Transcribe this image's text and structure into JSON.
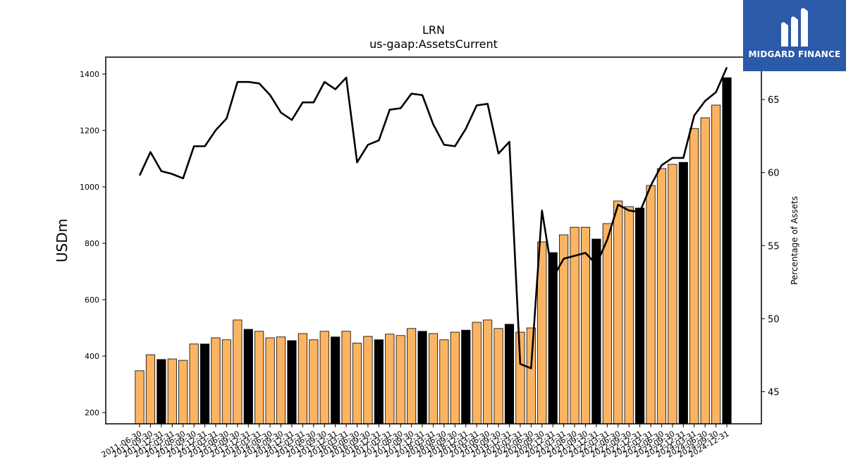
{
  "brand": {
    "name": "MIDGARD FINANCE",
    "bg_color": "#2b5aa8"
  },
  "chart_data": {
    "type": "bar+line",
    "title": "LRN",
    "subtitle": "us-gaap:AssetsCurrent",
    "ylabel": "USDm",
    "y2label": "Percentage of Assets",
    "ylim": [
      160,
      1460
    ],
    "y2lim": [
      42.8,
      67.9
    ],
    "yticks": [
      200,
      400,
      600,
      800,
      1000,
      1200,
      1400
    ],
    "y2ticks": [
      45,
      50,
      55,
      60,
      65
    ],
    "colors": {
      "quarter": "#fdb462",
      "fiscal_year_end": "#000000",
      "line": "#000000"
    },
    "categories": [
      "2011-06-30",
      "2011-09-30",
      "2011-12-31",
      "2012-03-31",
      "2012-06-30",
      "2012-09-30",
      "2012-12-31",
      "2013-03-31",
      "2013-06-30",
      "2013-09-30",
      "2013-12-31",
      "2014-03-31",
      "2014-06-30",
      "2014-09-30",
      "2014-12-31",
      "2015-03-31",
      "2015-06-30",
      "2015-09-30",
      "2015-12-31",
      "2016-03-31",
      "2016-06-30",
      "2016-09-30",
      "2016-12-31",
      "2017-03-31",
      "2017-06-30",
      "2017-09-30",
      "2017-12-31",
      "2018-03-31",
      "2018-06-30",
      "2018-09-30",
      "2018-12-31",
      "2019-03-31",
      "2019-06-30",
      "2019-09-30",
      "2019-12-31",
      "2020-03-31",
      "2020-06-30",
      "2020-09-30",
      "2020-12-31",
      "2021-03-31",
      "2021-06-30",
      "2021-09-30",
      "2021-12-31",
      "2022-03-31",
      "2022-06-30",
      "2022-09-30",
      "2022-12-31",
      "2023-03-31",
      "2023-06-30",
      "2023-09-30",
      "2023-12-31",
      "2024-03-31",
      "2024-06-30",
      "2024-09-30",
      "2024-12-31"
    ],
    "tick_labels": [
      "2011-06-30",
      "2011-09-30",
      "2011-12-31",
      "2012-03-31",
      "2012-06-30",
      "2012-09-30",
      "2012-12-31",
      "2013-03-31",
      "2013-06-30",
      "2013-09-30",
      "2013-12-31",
      "2014-03-31",
      "2014-06-30",
      "2014-09-30",
      "2014-12-31",
      "2015-03-31",
      "2015-06-30",
      "2015-09-30",
      "2015-12-31",
      "2016-03-31",
      "2016-06-30",
      "2016-09-30",
      "2016-12-31",
      "2017-03-31",
      "2017-06-30",
      "2017-09-30",
      "2017-12-31",
      "2018-03-31",
      "2018-06-30",
      "2018-09-30",
      "2018-12-31",
      "2019-03-31",
      "2019-06-30",
      "2019-09-30",
      "2019-12-31",
      "2020-03-31",
      "2020-06-30",
      "2020-09-30",
      "2020-12-31",
      "2021-03-31",
      "2021-06-30",
      "2021-09-30",
      "2021-12-31",
      "2022-03-31",
      "2022-06-30",
      "2022-09-30",
      "2022-12-31",
      "2023-03-31",
      "2023-06-30",
      "2023-09-30",
      "2023-12-31",
      "2024-03-31",
      "2024-06-30",
      "2024-09-30",
      "2024-12-31"
    ],
    "values": [
      348,
      405,
      388,
      390,
      385,
      443,
      443,
      465,
      458,
      528,
      495,
      488,
      465,
      468,
      455,
      480,
      458,
      488,
      468,
      488,
      446,
      470,
      458,
      478,
      473,
      498,
      488,
      480,
      458,
      485,
      492,
      520,
      528,
      498,
      513,
      485,
      500,
      805,
      767,
      830,
      857,
      857,
      815,
      870,
      950,
      930,
      925,
      1005,
      1065,
      1080,
      1087,
      1207,
      1245,
      1290,
      1387
    ],
    "fiscal_year_end": [
      false,
      false,
      true,
      false,
      false,
      false,
      true,
      false,
      false,
      false,
      true,
      false,
      false,
      false,
      true,
      false,
      false,
      false,
      true,
      false,
      false,
      false,
      true,
      false,
      false,
      false,
      true,
      false,
      false,
      false,
      true,
      false,
      false,
      false,
      true,
      false,
      false,
      false,
      true,
      false,
      false,
      false,
      true,
      false,
      false,
      false,
      true,
      false,
      false,
      false,
      true,
      false,
      false,
      false,
      true
    ],
    "line_values": [
      59.8,
      61.4,
      60.1,
      59.9,
      59.6,
      61.8,
      61.8,
      62.9,
      63.7,
      66.2,
      66.2,
      66.1,
      65.3,
      64.1,
      63.6,
      64.8,
      64.8,
      66.2,
      65.7,
      66.5,
      60.7,
      61.9,
      62.2,
      64.3,
      64.4,
      65.4,
      65.3,
      63.3,
      61.9,
      61.8,
      63.0,
      64.6,
      64.7,
      61.3,
      62.1,
      46.9,
      46.6,
      57.4,
      52.8,
      54.1,
      54.3,
      54.5,
      53.7,
      55.4,
      57.8,
      57.4,
      57.3,
      59.1,
      60.5,
      61.0,
      61.0,
      63.9,
      64.9,
      65.5,
      67.2
    ]
  }
}
